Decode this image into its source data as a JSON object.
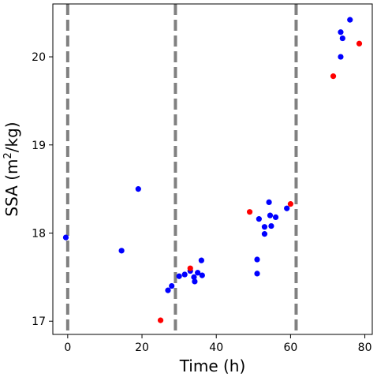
{
  "chart_data": {
    "type": "scatter",
    "title": "",
    "xlabel": "Time (h)",
    "ylabel_main": "SSA (m",
    "ylabel_sup": "2",
    "ylabel_tail": "/kg)",
    "xlim": [
      -4,
      82
    ],
    "ylim": [
      16.85,
      20.6
    ],
    "x_ticks": [
      0,
      20,
      40,
      60,
      80
    ],
    "x_tick_labels": [
      "0",
      "20",
      "40",
      "60",
      "80"
    ],
    "y_ticks": [
      17,
      18,
      19,
      20
    ],
    "y_tick_labels": [
      "17",
      "18",
      "19",
      "20"
    ],
    "grid": false,
    "vlines": [
      {
        "x": 0,
        "color": "#808080",
        "style": "dashed"
      },
      {
        "x": 29,
        "color": "#808080",
        "style": "dashed"
      },
      {
        "x": 61.5,
        "color": "#808080",
        "style": "dashed"
      }
    ],
    "series": [
      {
        "color": "#0000ff",
        "points": [
          [
            -0.5,
            17.95
          ],
          [
            19,
            18.5
          ],
          [
            14.5,
            17.8
          ],
          [
            27,
            17.35
          ],
          [
            28,
            17.4
          ],
          [
            30,
            17.51
          ],
          [
            31.5,
            17.53
          ],
          [
            33,
            17.57
          ],
          [
            34,
            17.5
          ],
          [
            34.2,
            17.45
          ],
          [
            35,
            17.55
          ],
          [
            36,
            17.69
          ],
          [
            36.2,
            17.52
          ],
          [
            51,
            17.7
          ],
          [
            51,
            17.54
          ],
          [
            51.5,
            18.16
          ],
          [
            53,
            18.07
          ],
          [
            53,
            17.99
          ],
          [
            54.2,
            18.35
          ],
          [
            54.5,
            18.2
          ],
          [
            54.8,
            18.08
          ],
          [
            56,
            18.18
          ],
          [
            59,
            18.28
          ],
          [
            73.5,
            20.0
          ],
          [
            73.5,
            20.28
          ],
          [
            74,
            20.21
          ],
          [
            76,
            20.42
          ]
        ]
      },
      {
        "color": "#ff0000",
        "points": [
          [
            25,
            17.01
          ],
          [
            33,
            17.6
          ],
          [
            49,
            18.24
          ],
          [
            60,
            18.33
          ],
          [
            71.5,
            19.78
          ],
          [
            78.5,
            20.15
          ]
        ]
      }
    ]
  }
}
